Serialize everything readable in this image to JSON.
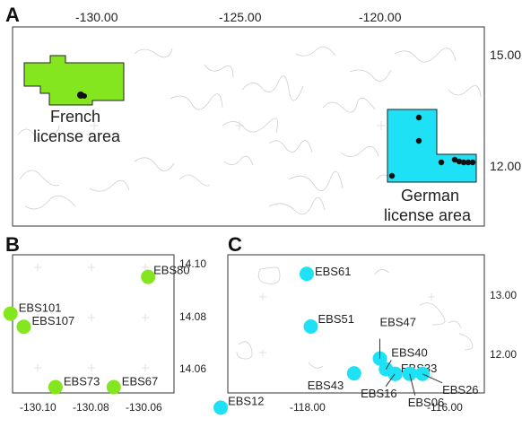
{
  "panel_a": {
    "letter": "A",
    "x_ticks": [
      "-130.00",
      "-125.00",
      "-120.00"
    ],
    "y_ticks": [
      "15.00",
      "12.00"
    ],
    "french_area": {
      "line1": "French",
      "line2": "license area",
      "color": "#84e61e"
    },
    "german_area": {
      "line1": "German",
      "line2": "license area",
      "color": "#1ee1f5"
    }
  },
  "panel_b": {
    "letter": "B",
    "x_ticks": [
      "-130.10",
      "-130.08",
      "-130.06"
    ],
    "y_ticks": [
      "14.10",
      "14.08",
      "14.06"
    ],
    "marker_color": "#84e61e",
    "stations": [
      {
        "name": "EBS80",
        "lon": -130.063,
        "lat": 14.095
      },
      {
        "name": "EBS101",
        "lon": -130.115,
        "lat": 14.081
      },
      {
        "name": "EBS107",
        "lon": -130.11,
        "lat": 14.076
      },
      {
        "name": "EBS73",
        "lon": -130.098,
        "lat": 14.053
      },
      {
        "name": "EBS67",
        "lon": -130.076,
        "lat": 14.053
      }
    ]
  },
  "panel_c": {
    "letter": "C",
    "x_ticks": [
      "-118.00",
      "-116.00"
    ],
    "y_ticks": [
      "13.00",
      "12.00"
    ],
    "marker_color": "#1ee1f5",
    "stations": [
      {
        "name": "EBS61",
        "lon": -118.08,
        "lat": 13.36
      },
      {
        "name": "EBS51",
        "lon": -118.02,
        "lat": 12.47
      },
      {
        "name": "EBS47",
        "lon": -117.0,
        "lat": 11.93
      },
      {
        "name": "EBS40",
        "lon": -116.91,
        "lat": 11.75
      },
      {
        "name": "EBS33",
        "lon": -116.77,
        "lat": 11.67
      },
      {
        "name": "EBS26",
        "lon": -116.37,
        "lat": 11.67
      },
      {
        "name": "EBS43",
        "lon": -117.38,
        "lat": 11.68
      },
      {
        "name": "EBS16",
        "lon": -116.78,
        "lat": 11.67
      },
      {
        "name": "EBS06",
        "lon": -116.56,
        "lat": 11.67
      },
      {
        "name": "EBS12",
        "lon": -119.35,
        "lat": 11.1
      }
    ]
  }
}
